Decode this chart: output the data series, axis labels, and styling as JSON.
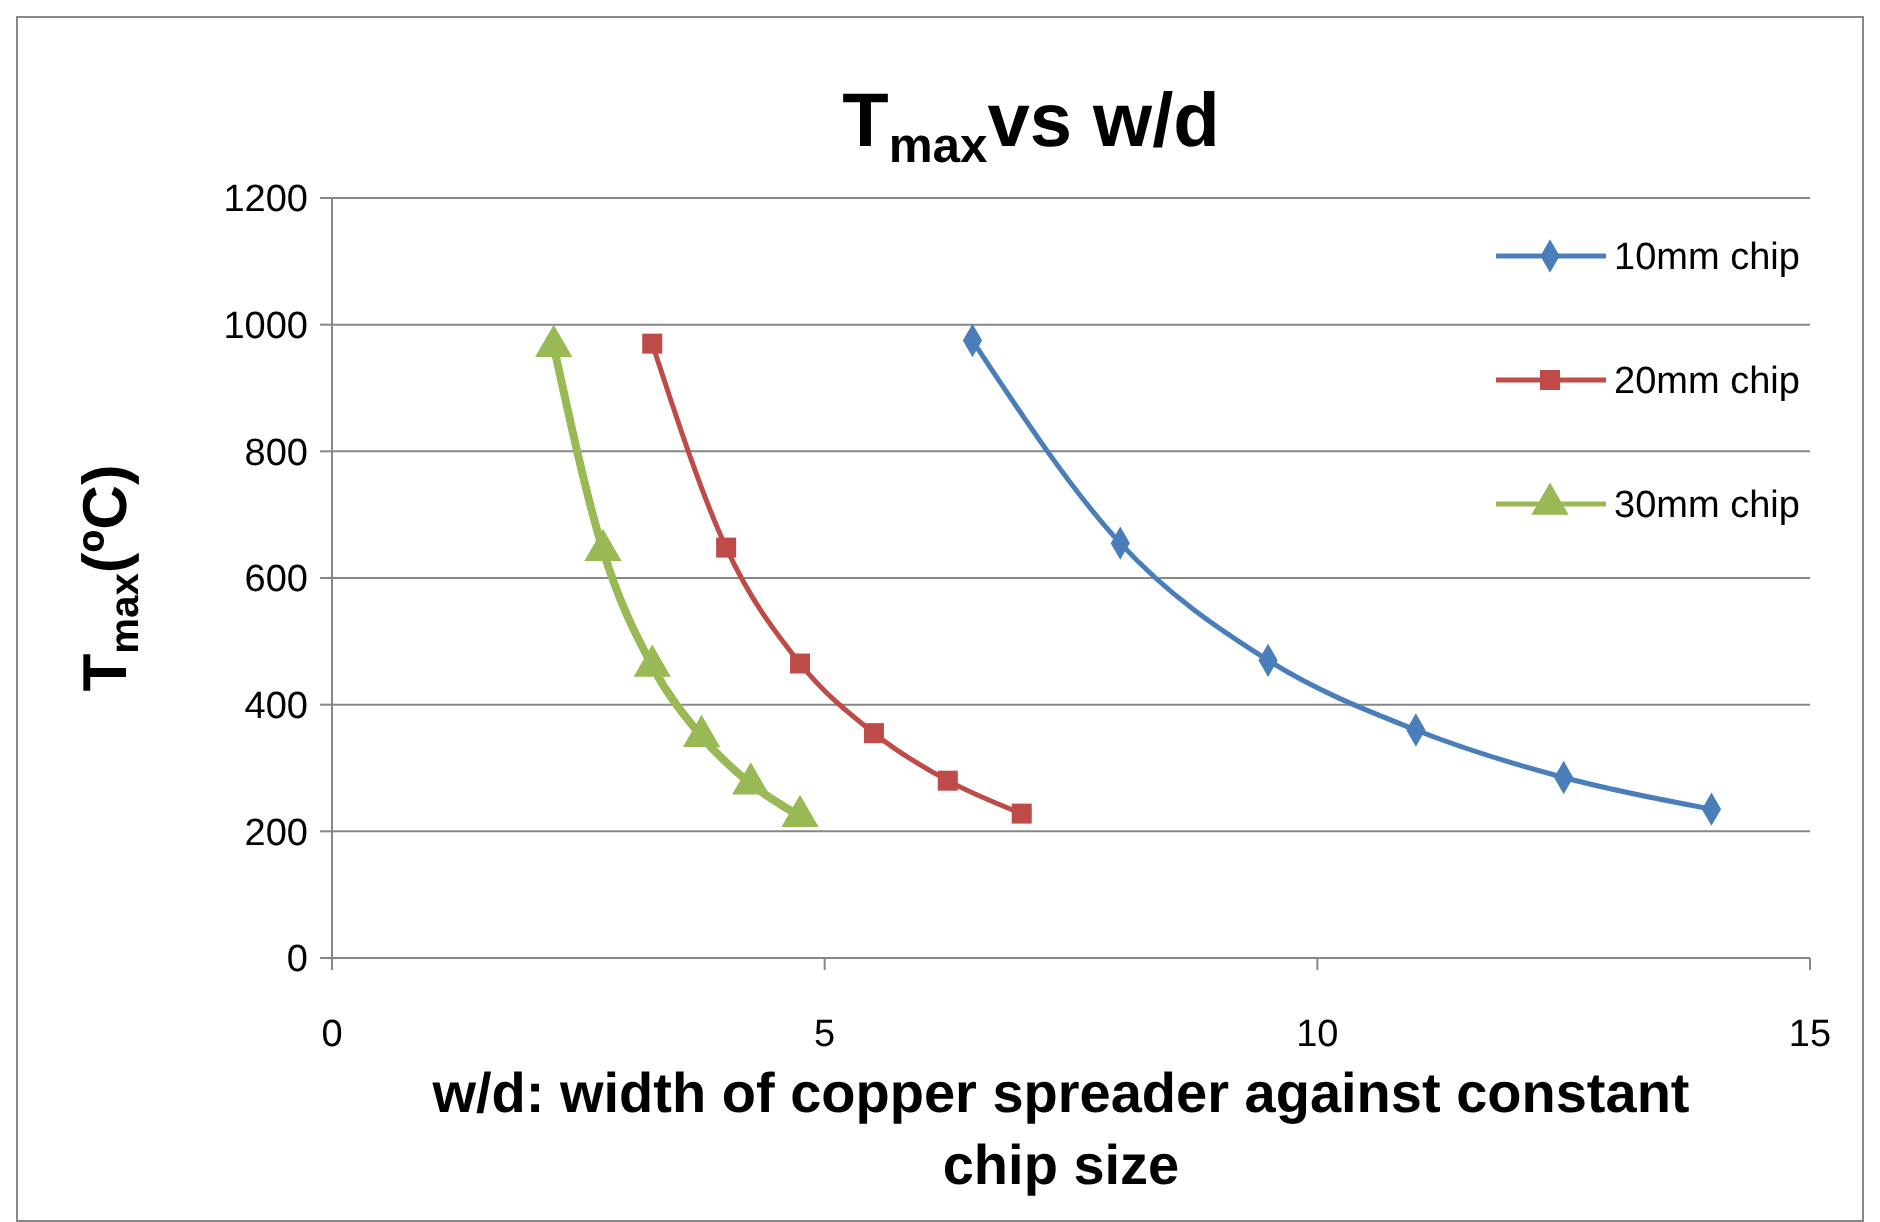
{
  "chart_data": {
    "type": "line",
    "title": "T$_{max}$vs w/d",
    "xlabel": "w/d: width of copper spreader against constant chip size",
    "ylabel": "T$_{max}$(ºC)",
    "xlim": [
      0,
      15
    ],
    "xticks": [
      0,
      5,
      10,
      15
    ],
    "ylim": [
      0,
      1200
    ],
    "yticks": [
      0,
      200,
      400,
      600,
      800,
      1000,
      1200
    ],
    "grid": "y",
    "legend": "top right",
    "series": [
      {
        "name": "10mm chip",
        "color": "#4a7ebb",
        "marker": "diamond",
        "x": [
          6.5,
          8,
          9.5,
          11,
          12.5,
          14
        ],
        "values": [
          975,
          655,
          470,
          360,
          285,
          235
        ]
      },
      {
        "name": "20mm chip",
        "color": "#be4b48",
        "marker": "square",
        "x": [
          3.25,
          4,
          4.75,
          5.5,
          6.25,
          7
        ],
        "values": [
          970,
          648,
          465,
          355,
          280,
          228
        ]
      },
      {
        "name": "30mm chip",
        "color": "#98b954",
        "marker": "triangle",
        "x": [
          2.25,
          2.75,
          3.25,
          3.75,
          4.25,
          4.75
        ],
        "values": [
          966,
          644,
          461,
          350,
          275,
          224
        ]
      }
    ]
  }
}
